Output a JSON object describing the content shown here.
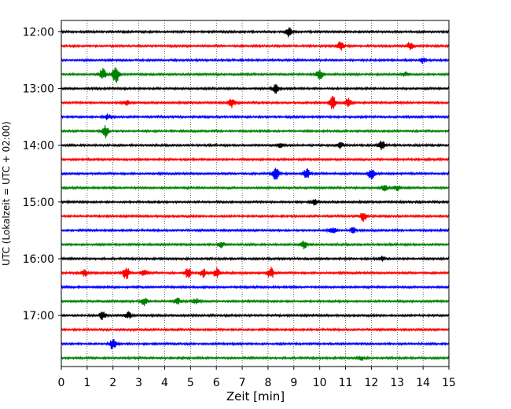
{
  "chart_data": {
    "type": "line",
    "title": "",
    "xlabel": "Zeit  [min]",
    "ylabel": "UTC (Lokalzeit = UTC + 02:00)",
    "xlim": [
      0,
      15
    ],
    "x_ticks": [
      "0",
      "1",
      "2",
      "3",
      "4",
      "5",
      "6",
      "7",
      "8",
      "9",
      "10",
      "11",
      "12",
      "13",
      "14",
      "15"
    ],
    "y_ticks": [
      {
        "hour": 12.0,
        "label": "12:00"
      },
      {
        "hour": 13.0,
        "label": "13:00"
      },
      {
        "hour": 14.0,
        "label": "14:00"
      },
      {
        "hour": 15.0,
        "label": "15:00"
      },
      {
        "hour": 16.0,
        "label": "16:00"
      },
      {
        "hour": 17.0,
        "label": "17:00"
      }
    ],
    "y_range_hours": [
      11.8,
      17.9
    ],
    "grid_x": true,
    "colors": [
      "#000000",
      "#ff0000",
      "#0000ff",
      "#008000"
    ],
    "traces": [
      {
        "start": "12:00",
        "color": "#000000",
        "events": [
          [
            8.8,
            0.35
          ]
        ]
      },
      {
        "start": "12:15",
        "color": "#ff0000",
        "events": [
          [
            10.8,
            0.3
          ],
          [
            13.5,
            0.3
          ]
        ]
      },
      {
        "start": "12:30",
        "color": "#0000ff",
        "events": [
          [
            14.0,
            0.2
          ]
        ]
      },
      {
        "start": "12:45",
        "color": "#008000",
        "events": [
          [
            1.6,
            0.45
          ],
          [
            2.1,
            0.7
          ],
          [
            10.0,
            0.35
          ],
          [
            13.3,
            0.15
          ]
        ]
      },
      {
        "start": "13:00",
        "color": "#000000",
        "events": [
          [
            8.3,
            0.3
          ]
        ]
      },
      {
        "start": "13:15",
        "color": "#ff0000",
        "events": [
          [
            2.5,
            0.2
          ],
          [
            6.6,
            0.35
          ],
          [
            10.5,
            0.45
          ],
          [
            11.1,
            0.3
          ]
        ]
      },
      {
        "start": "13:30",
        "color": "#0000ff",
        "events": [
          [
            1.8,
            0.2
          ]
        ]
      },
      {
        "start": "13:45",
        "color": "#008000",
        "events": [
          [
            1.7,
            0.45
          ]
        ]
      },
      {
        "start": "14:00",
        "color": "#000000",
        "events": [
          [
            8.5,
            0.15
          ],
          [
            10.8,
            0.2
          ],
          [
            12.4,
            0.35
          ]
        ]
      },
      {
        "start": "14:15",
        "color": "#ff0000",
        "events": []
      },
      {
        "start": "14:30",
        "color": "#0000ff",
        "events": [
          [
            8.3,
            0.45
          ],
          [
            9.5,
            0.35
          ],
          [
            12.0,
            0.45
          ]
        ]
      },
      {
        "start": "14:45",
        "color": "#008000",
        "events": [
          [
            12.5,
            0.2
          ],
          [
            13.0,
            0.2
          ]
        ]
      },
      {
        "start": "15:00",
        "color": "#000000",
        "events": [
          [
            9.8,
            0.2
          ]
        ]
      },
      {
        "start": "15:15",
        "color": "#ff0000",
        "events": [
          [
            11.7,
            0.35
          ]
        ]
      },
      {
        "start": "15:30",
        "color": "#0000ff",
        "events": [
          [
            10.5,
            0.25
          ],
          [
            11.3,
            0.2
          ]
        ]
      },
      {
        "start": "15:45",
        "color": "#008000",
        "events": [
          [
            6.2,
            0.2
          ],
          [
            9.4,
            0.3
          ]
        ]
      },
      {
        "start": "16:00",
        "color": "#000000",
        "events": [
          [
            12.4,
            0.15
          ]
        ]
      },
      {
        "start": "16:15",
        "color": "#ff0000",
        "events": [
          [
            0.9,
            0.25
          ],
          [
            2.5,
            0.5
          ],
          [
            3.2,
            0.25
          ],
          [
            4.9,
            0.35
          ],
          [
            5.5,
            0.3
          ],
          [
            6.0,
            0.35
          ],
          [
            8.1,
            0.45
          ]
        ]
      },
      {
        "start": "16:30",
        "color": "#0000ff",
        "events": []
      },
      {
        "start": "16:45",
        "color": "#008000",
        "events": [
          [
            3.2,
            0.3
          ],
          [
            4.5,
            0.2
          ],
          [
            5.2,
            0.2
          ]
        ]
      },
      {
        "start": "17:00",
        "color": "#000000",
        "events": [
          [
            1.6,
            0.3
          ],
          [
            2.6,
            0.25
          ]
        ]
      },
      {
        "start": "17:15",
        "color": "#ff0000",
        "events": []
      },
      {
        "start": "17:30",
        "color": "#0000ff",
        "events": [
          [
            2.0,
            0.45
          ]
        ]
      },
      {
        "start": "17:45",
        "color": "#008000",
        "events": [
          [
            11.6,
            0.15
          ]
        ]
      }
    ]
  }
}
